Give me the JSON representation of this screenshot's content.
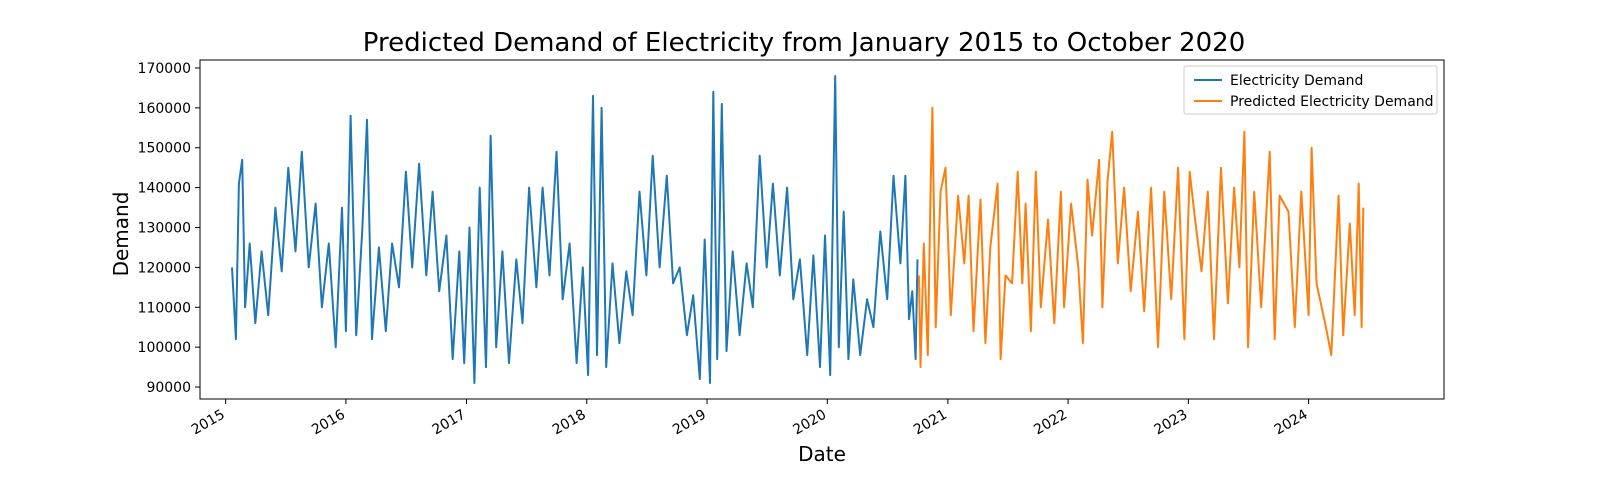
{
  "chart_data": {
    "type": "line",
    "title": "Predicted Demand of Electricity from January 2015 to October 2020",
    "xlabel": "Date",
    "ylabel": "Demand",
    "x_type": "date",
    "xlim": [
      "2014-10-15",
      "2025-02-15"
    ],
    "ylim": [
      87000,
      172000
    ],
    "x_ticks": [
      "2015",
      "2016",
      "2017",
      "2018",
      "2019",
      "2020",
      "2021",
      "2022",
      "2023",
      "2024"
    ],
    "y_ticks": [
      90000,
      100000,
      110000,
      120000,
      130000,
      140000,
      150000,
      160000,
      170000
    ],
    "grid": false,
    "legend_position": "top-right",
    "series": [
      {
        "name": "Electricity Demand",
        "color": "#1f77b4",
        "points": [
          [
            "2015-01-20",
            120000
          ],
          [
            "2015-02-01",
            102000
          ],
          [
            "2015-02-10",
            141000
          ],
          [
            "2015-02-20",
            147000
          ],
          [
            "2015-03-01",
            110000
          ],
          [
            "2015-03-15",
            126000
          ],
          [
            "2015-04-01",
            106000
          ],
          [
            "2015-04-20",
            124000
          ],
          [
            "2015-05-10",
            108000
          ],
          [
            "2015-06-01",
            135000
          ],
          [
            "2015-06-20",
            119000
          ],
          [
            "2015-07-10",
            145000
          ],
          [
            "2015-08-01",
            124000
          ],
          [
            "2015-08-20",
            149000
          ],
          [
            "2015-09-10",
            120000
          ],
          [
            "2015-10-01",
            136000
          ],
          [
            "2015-10-20",
            110000
          ],
          [
            "2015-11-10",
            126000
          ],
          [
            "2015-12-01",
            100000
          ],
          [
            "2015-12-20",
            135000
          ],
          [
            "2016-01-01",
            104000
          ],
          [
            "2016-01-15",
            158000
          ],
          [
            "2016-02-01",
            103000
          ],
          [
            "2016-02-20",
            130000
          ],
          [
            "2016-03-05",
            157000
          ],
          [
            "2016-03-20",
            102000
          ],
          [
            "2016-04-10",
            125000
          ],
          [
            "2016-05-01",
            104000
          ],
          [
            "2016-05-20",
            126000
          ],
          [
            "2016-06-10",
            115000
          ],
          [
            "2016-07-01",
            144000
          ],
          [
            "2016-07-20",
            120000
          ],
          [
            "2016-08-10",
            146000
          ],
          [
            "2016-09-01",
            118000
          ],
          [
            "2016-09-20",
            139000
          ],
          [
            "2016-10-10",
            114000
          ],
          [
            "2016-11-01",
            128000
          ],
          [
            "2016-11-20",
            97000
          ],
          [
            "2016-12-10",
            124000
          ],
          [
            "2016-12-25",
            96000
          ],
          [
            "2017-01-10",
            130000
          ],
          [
            "2017-01-25",
            91000
          ],
          [
            "2017-02-10",
            140000
          ],
          [
            "2017-03-01",
            95000
          ],
          [
            "2017-03-15",
            153000
          ],
          [
            "2017-04-01",
            100000
          ],
          [
            "2017-04-20",
            124000
          ],
          [
            "2017-05-10",
            96000
          ],
          [
            "2017-06-01",
            122000
          ],
          [
            "2017-06-20",
            106000
          ],
          [
            "2017-07-10",
            140000
          ],
          [
            "2017-08-01",
            115000
          ],
          [
            "2017-08-20",
            140000
          ],
          [
            "2017-09-10",
            118000
          ],
          [
            "2017-10-01",
            149000
          ],
          [
            "2017-10-20",
            112000
          ],
          [
            "2017-11-10",
            126000
          ],
          [
            "2017-12-01",
            96000
          ],
          [
            "2017-12-20",
            120000
          ],
          [
            "2018-01-05",
            93000
          ],
          [
            "2018-01-20",
            163000
          ],
          [
            "2018-02-01",
            98000
          ],
          [
            "2018-02-15",
            160000
          ],
          [
            "2018-03-01",
            95000
          ],
          [
            "2018-03-20",
            121000
          ],
          [
            "2018-04-10",
            101000
          ],
          [
            "2018-05-01",
            119000
          ],
          [
            "2018-05-20",
            108000
          ],
          [
            "2018-06-10",
            139000
          ],
          [
            "2018-07-01",
            118000
          ],
          [
            "2018-07-20",
            148000
          ],
          [
            "2018-08-10",
            120000
          ],
          [
            "2018-09-01",
            143000
          ],
          [
            "2018-09-20",
            116000
          ],
          [
            "2018-10-10",
            120000
          ],
          [
            "2018-11-01",
            103000
          ],
          [
            "2018-11-20",
            113000
          ],
          [
            "2018-12-10",
            92000
          ],
          [
            "2018-12-25",
            127000
          ],
          [
            "2019-01-10",
            91000
          ],
          [
            "2019-01-20",
            164000
          ],
          [
            "2019-02-01",
            97000
          ],
          [
            "2019-02-15",
            161000
          ],
          [
            "2019-03-01",
            99000
          ],
          [
            "2019-03-20",
            124000
          ],
          [
            "2019-04-10",
            103000
          ],
          [
            "2019-05-01",
            121000
          ],
          [
            "2019-05-20",
            110000
          ],
          [
            "2019-06-10",
            148000
          ],
          [
            "2019-07-01",
            120000
          ],
          [
            "2019-07-20",
            141000
          ],
          [
            "2019-08-10",
            118000
          ],
          [
            "2019-09-01",
            140000
          ],
          [
            "2019-09-20",
            112000
          ],
          [
            "2019-10-10",
            122000
          ],
          [
            "2019-11-01",
            98000
          ],
          [
            "2019-11-20",
            123000
          ],
          [
            "2019-12-10",
            95000
          ],
          [
            "2019-12-25",
            128000
          ],
          [
            "2020-01-10",
            93000
          ],
          [
            "2020-01-25",
            168000
          ],
          [
            "2020-02-05",
            100000
          ],
          [
            "2020-02-20",
            134000
          ],
          [
            "2020-03-05",
            97000
          ],
          [
            "2020-03-20",
            117000
          ],
          [
            "2020-04-10",
            98000
          ],
          [
            "2020-05-01",
            112000
          ],
          [
            "2020-05-20",
            105000
          ],
          [
            "2020-06-10",
            129000
          ],
          [
            "2020-07-01",
            112000
          ],
          [
            "2020-07-20",
            143000
          ],
          [
            "2020-08-10",
            121000
          ],
          [
            "2020-08-25",
            143000
          ],
          [
            "2020-09-05",
            107000
          ],
          [
            "2020-09-15",
            114000
          ],
          [
            "2020-09-25",
            97000
          ],
          [
            "2020-10-01",
            122000
          ]
        ]
      },
      {
        "name": "Predicted Electricity Demand",
        "color": "#ff7f0e",
        "points": [
          [
            "2020-10-05",
            118000
          ],
          [
            "2020-10-10",
            95000
          ],
          [
            "2020-10-20",
            126000
          ],
          [
            "2020-11-01",
            98000
          ],
          [
            "2020-11-10",
            141000
          ],
          [
            "2020-11-15",
            160000
          ],
          [
            "2020-11-25",
            105000
          ],
          [
            "2020-12-10",
            139000
          ],
          [
            "2020-12-25",
            145000
          ],
          [
            "2021-01-10",
            108000
          ],
          [
            "2021-02-01",
            138000
          ],
          [
            "2021-02-20",
            121000
          ],
          [
            "2021-03-05",
            138000
          ],
          [
            "2021-03-20",
            104000
          ],
          [
            "2021-04-10",
            137000
          ],
          [
            "2021-04-25",
            101000
          ],
          [
            "2021-05-10",
            125000
          ],
          [
            "2021-06-01",
            141000
          ],
          [
            "2021-06-10",
            97000
          ],
          [
            "2021-06-25",
            118000
          ],
          [
            "2021-07-15",
            116000
          ],
          [
            "2021-08-01",
            144000
          ],
          [
            "2021-08-15",
            116000
          ],
          [
            "2021-08-25",
            136000
          ],
          [
            "2021-09-10",
            104000
          ],
          [
            "2021-09-25",
            144000
          ],
          [
            "2021-10-10",
            110000
          ],
          [
            "2021-11-01",
            132000
          ],
          [
            "2021-11-20",
            106000
          ],
          [
            "2021-12-10",
            139000
          ],
          [
            "2021-12-20",
            110000
          ],
          [
            "2022-01-10",
            136000
          ],
          [
            "2022-02-01",
            120000
          ],
          [
            "2022-02-15",
            101000
          ],
          [
            "2022-03-01",
            142000
          ],
          [
            "2022-03-15",
            128000
          ],
          [
            "2022-04-05",
            147000
          ],
          [
            "2022-04-15",
            110000
          ],
          [
            "2022-05-01",
            142000
          ],
          [
            "2022-05-15",
            154000
          ],
          [
            "2022-06-01",
            121000
          ],
          [
            "2022-06-20",
            140000
          ],
          [
            "2022-07-10",
            114000
          ],
          [
            "2022-08-01",
            134000
          ],
          [
            "2022-08-20",
            109000
          ],
          [
            "2022-09-10",
            140000
          ],
          [
            "2022-10-01",
            100000
          ],
          [
            "2022-10-20",
            139000
          ],
          [
            "2022-11-10",
            112000
          ],
          [
            "2022-12-01",
            145000
          ],
          [
            "2022-12-20",
            102000
          ],
          [
            "2023-01-05",
            144000
          ],
          [
            "2023-01-20",
            133000
          ],
          [
            "2023-02-10",
            119000
          ],
          [
            "2023-03-01",
            139000
          ],
          [
            "2023-03-20",
            102000
          ],
          [
            "2023-04-10",
            145000
          ],
          [
            "2023-05-01",
            111000
          ],
          [
            "2023-05-20",
            140000
          ],
          [
            "2023-06-05",
            120000
          ],
          [
            "2023-06-20",
            154000
          ],
          [
            "2023-07-01",
            100000
          ],
          [
            "2023-07-20",
            139000
          ],
          [
            "2023-08-10",
            110000
          ],
          [
            "2023-09-05",
            149000
          ],
          [
            "2023-09-20",
            102000
          ],
          [
            "2023-10-05",
            138000
          ],
          [
            "2023-11-01",
            134000
          ],
          [
            "2023-11-20",
            105000
          ],
          [
            "2023-12-10",
            139000
          ],
          [
            "2024-01-01",
            108000
          ],
          [
            "2024-01-10",
            150000
          ],
          [
            "2024-01-25",
            116000
          ],
          [
            "2024-02-20",
            106000
          ],
          [
            "2024-03-10",
            98000
          ],
          [
            "2024-04-01",
            138000
          ],
          [
            "2024-04-15",
            103000
          ],
          [
            "2024-05-05",
            131000
          ],
          [
            "2024-05-20",
            108000
          ],
          [
            "2024-06-01",
            141000
          ],
          [
            "2024-06-10",
            105000
          ],
          [
            "2024-06-15",
            135000
          ]
        ]
      }
    ]
  }
}
